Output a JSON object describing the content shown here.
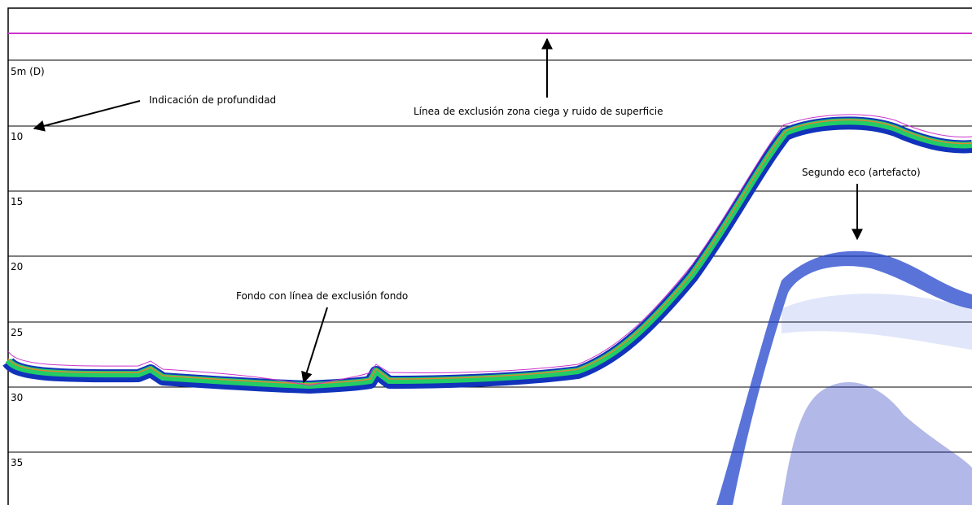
{
  "depth_labels": [
    "5m (D)",
    "10",
    "15",
    "20",
    "25",
    "30",
    "35"
  ],
  "annotations": [
    "Indicación de profundidad",
    "Línea de exclusión zona ciega y ruido de superficie",
    "Segundo eco (artefacto)",
    "Fondo con línea de exclusión fondo"
  ]
}
